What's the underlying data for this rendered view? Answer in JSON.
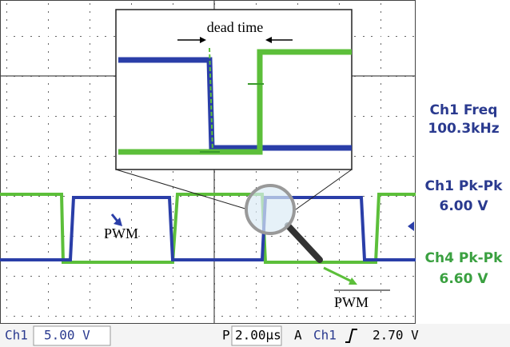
{
  "annotations": {
    "dead_time": "dead time",
    "pwm": "PWM",
    "pwm_bar": "PWM"
  },
  "measurements": [
    {
      "label": "Ch1 Freq",
      "value": "100.3kHz"
    },
    {
      "label": "Ch1 Pk-Pk",
      "value": "6.00 V"
    },
    {
      "label": "Ch4 Pk-Pk",
      "value": "6.60 V"
    }
  ],
  "status_bar": {
    "channel": "Ch1",
    "volts_per_div": "5.00 V",
    "position_label": "P",
    "time_per_div": "2.00µs",
    "acquire_label": "A",
    "trigger_channel": "Ch1",
    "trigger_level": "2.70 V"
  }
}
